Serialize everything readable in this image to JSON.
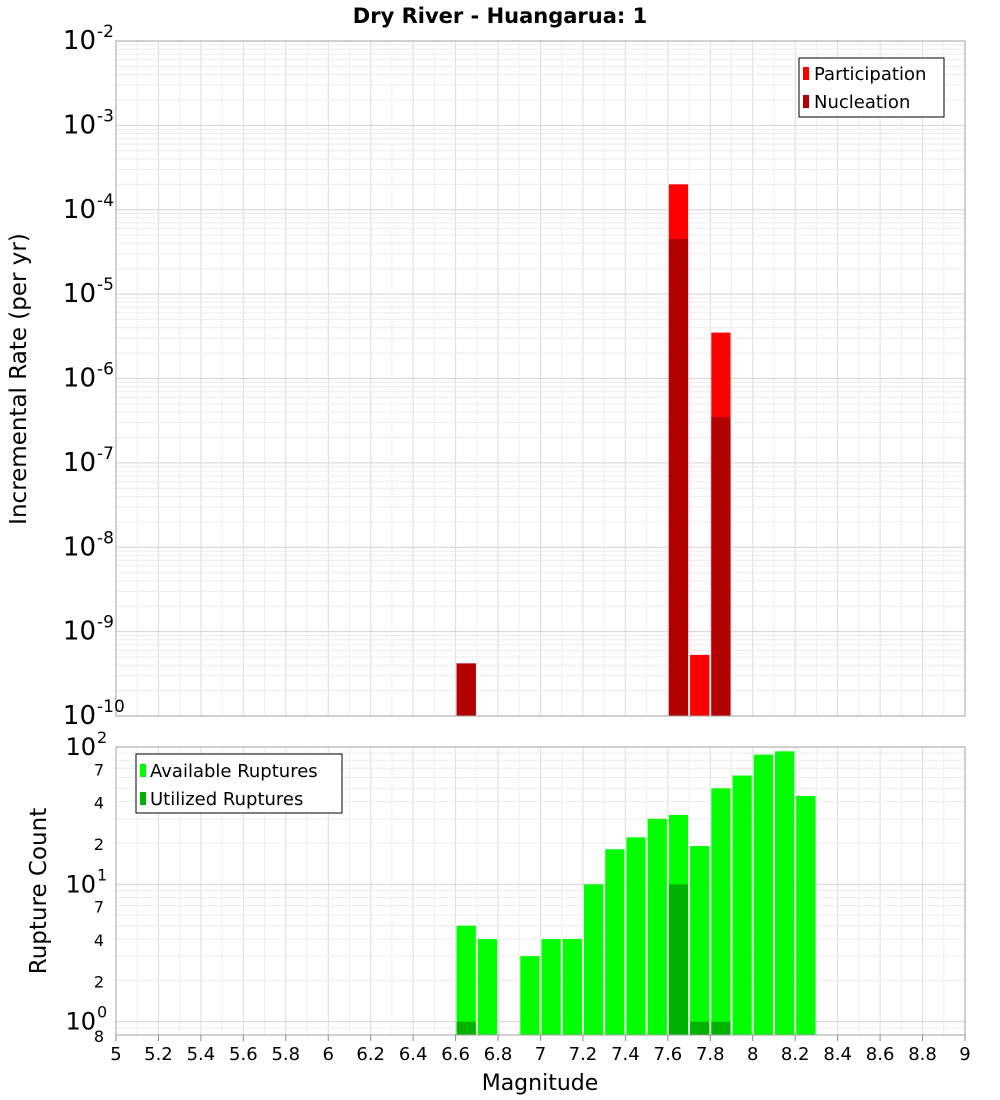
{
  "chart_data": [
    {
      "type": "bar",
      "title": "Dry River - Huangarua: 1",
      "ylabel": "Incremental Rate (per yr)",
      "xlabel": "",
      "yscale": "log",
      "ylim": [
        1e-10,
        0.01
      ],
      "xlim": [
        5,
        9
      ],
      "bin_width": 0.1,
      "legend_position": "top-right",
      "y_tick_labels": [
        {
          "base": "10",
          "exp": "-2",
          "value": 0.01
        },
        {
          "base": "10",
          "exp": "-3",
          "value": 0.001
        },
        {
          "base": "10",
          "exp": "-4",
          "value": 0.0001
        },
        {
          "base": "10",
          "exp": "-5",
          "value": 1e-05
        },
        {
          "base": "10",
          "exp": "-6",
          "value": 1e-06
        },
        {
          "base": "10",
          "exp": "-7",
          "value": 1e-07
        },
        {
          "base": "10",
          "exp": "-8",
          "value": 1e-08
        },
        {
          "base": "10",
          "exp": "-9",
          "value": 1e-09
        },
        {
          "base": "10",
          "exp": "-10",
          "value": 1e-10
        }
      ],
      "series": [
        {
          "name": "Participation",
          "color": "#ff0000",
          "points": [
            {
              "x": 6.65,
              "y": 4.2e-10
            },
            {
              "x": 7.65,
              "y": 0.0002
            },
            {
              "x": 7.75,
              "y": 5.3e-10
            },
            {
              "x": 7.85,
              "y": 3.5e-06
            }
          ]
        },
        {
          "name": "Nucleation",
          "color": "#b30000",
          "points": [
            {
              "x": 6.65,
              "y": 4.2e-10
            },
            {
              "x": 7.65,
              "y": 4.5e-05
            },
            {
              "x": 7.85,
              "y": 3.5e-07
            }
          ]
        }
      ]
    },
    {
      "type": "bar",
      "title": "",
      "ylabel": "Rupture Count",
      "xlabel": "Magnitude",
      "yscale": "log",
      "ylim": [
        0.8,
        100
      ],
      "xlim": [
        5,
        9
      ],
      "bin_width": 0.1,
      "legend_position": "top-left",
      "x_tick_labels": [
        "5",
        "5.2",
        "5.4",
        "5.6",
        "5.8",
        "6",
        "6.2",
        "6.4",
        "6.6",
        "6.8",
        "7",
        "7.2",
        "7.4",
        "7.6",
        "7.8",
        "8",
        "8.2",
        "8.4",
        "8.6",
        "8.8",
        "9"
      ],
      "y_tick_labels": [
        {
          "base": "10",
          "exp": "2",
          "value": 100
        },
        {
          "base": "",
          "exp": "",
          "label": "7",
          "value": 70
        },
        {
          "base": "",
          "exp": "",
          "label": "4",
          "value": 40
        },
        {
          "base": "",
          "exp": "",
          "label": "2",
          "value": 20
        },
        {
          "base": "10",
          "exp": "1",
          "value": 10
        },
        {
          "base": "",
          "exp": "",
          "label": "7",
          "value": 7
        },
        {
          "base": "",
          "exp": "",
          "label": "4",
          "value": 4
        },
        {
          "base": "",
          "exp": "",
          "label": "2",
          "value": 2
        },
        {
          "base": "10",
          "exp": "0",
          "value": 1
        },
        {
          "base": "",
          "exp": "",
          "label": "8",
          "value": 0.8
        }
      ],
      "series": [
        {
          "name": "Available Ruptures",
          "color": "#00ff00",
          "points": [
            {
              "x": 6.65,
              "y": 5
            },
            {
              "x": 6.75,
              "y": 4
            },
            {
              "x": 6.95,
              "y": 3
            },
            {
              "x": 7.05,
              "y": 4
            },
            {
              "x": 7.15,
              "y": 4
            },
            {
              "x": 7.25,
              "y": 10
            },
            {
              "x": 7.35,
              "y": 18
            },
            {
              "x": 7.45,
              "y": 22
            },
            {
              "x": 7.55,
              "y": 30
            },
            {
              "x": 7.65,
              "y": 32
            },
            {
              "x": 7.75,
              "y": 19
            },
            {
              "x": 7.85,
              "y": 50
            },
            {
              "x": 7.95,
              "y": 62
            },
            {
              "x": 8.05,
              "y": 88
            },
            {
              "x": 8.15,
              "y": 93
            },
            {
              "x": 8.25,
              "y": 44
            }
          ]
        },
        {
          "name": "Utilized Ruptures",
          "color": "#00b300",
          "points": [
            {
              "x": 6.65,
              "y": 1
            },
            {
              "x": 7.65,
              "y": 10
            },
            {
              "x": 7.75,
              "y": 1
            },
            {
              "x": 7.85,
              "y": 1
            }
          ]
        }
      ]
    }
  ]
}
